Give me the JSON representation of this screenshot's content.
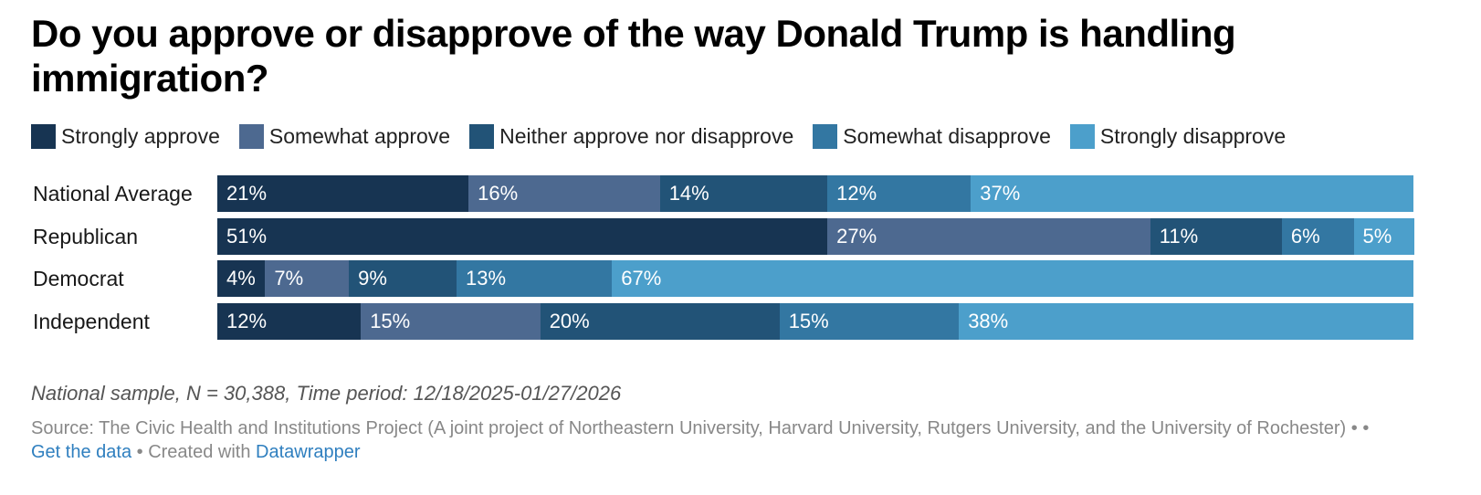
{
  "chart_data": {
    "type": "bar",
    "orientation": "horizontal",
    "stacked": true,
    "title": "Do you approve or disapprove of the way Donald Trump is handling immigration?",
    "categories": [
      "National Average",
      "Republican",
      "Democrat",
      "Independent"
    ],
    "series": [
      {
        "name": "Strongly approve",
        "color": "#173452",
        "values": [
          21,
          51,
          4,
          12
        ]
      },
      {
        "name": "Somewhat approve",
        "color": "#4d6990",
        "values": [
          16,
          27,
          7,
          15
        ]
      },
      {
        "name": "Neither approve nor disapprove",
        "color": "#225377",
        "values": [
          14,
          11,
          9,
          20
        ]
      },
      {
        "name": "Somewhat disapprove",
        "color": "#3377a2",
        "values": [
          12,
          6,
          13,
          15
        ]
      },
      {
        "name": "Strongly disapprove",
        "color": "#4c9fcb",
        "values": [
          37,
          5,
          67,
          38
        ]
      }
    ],
    "value_suffix": "%",
    "xlim": [
      0,
      100
    ],
    "xlabel": "",
    "ylabel": "",
    "grid": false,
    "legend_position": "top"
  },
  "notes": "National sample, N = 30,388, Time period: 12/18/2025-01/27/2026",
  "source": {
    "text": "Source: The Civic Health and Institutions Project (A joint project of Northeastern University, Harvard University, Rutgers University, and the University of Rochester) • • ",
    "get_data_label": "Get the data",
    "separator": " • Created with ",
    "datawrapper_label": "Datawrapper"
  }
}
